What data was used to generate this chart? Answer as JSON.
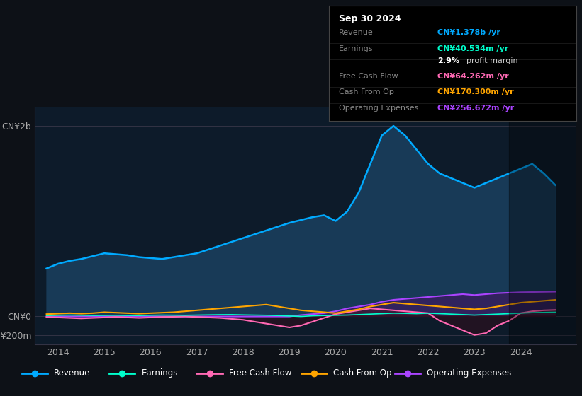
{
  "bg_color": "#0d1117",
  "plot_bg_color": "#0d1b2a",
  "ylabel_top": "CN¥2b",
  "ytick_labels": [
    "CN¥2b",
    "CN¥0",
    "-CN¥200m"
  ],
  "ytick_values": [
    2000,
    0,
    -200
  ],
  "ylim": [
    -300,
    2200
  ],
  "xlim_start": 2013.5,
  "xlim_end": 2025.2,
  "xtick_years": [
    2014,
    2015,
    2016,
    2017,
    2018,
    2019,
    2020,
    2021,
    2022,
    2023,
    2024
  ],
  "legend_items": [
    {
      "label": "Revenue",
      "color": "#00aaff"
    },
    {
      "label": "Earnings",
      "color": "#00ffcc"
    },
    {
      "label": "Free Cash Flow",
      "color": "#ff69b4"
    },
    {
      "label": "Cash From Op",
      "color": "#ffa500"
    },
    {
      "label": "Operating Expenses",
      "color": "#aa44ff"
    }
  ],
  "info_box": {
    "title": "Sep 30 2024",
    "rows": [
      {
        "label": "Revenue",
        "value": "CN¥1.378b /yr",
        "value_color": "#00aaff"
      },
      {
        "label": "Earnings",
        "value": "CN¥40.534m /yr",
        "value_color": "#00ffcc"
      },
      {
        "label": "",
        "value": "2.9% profit margin",
        "value_color": "#ffffff"
      },
      {
        "label": "Free Cash Flow",
        "value": "CN¥64.262m /yr",
        "value_color": "#ff69b4"
      },
      {
        "label": "Cash From Op",
        "value": "CN¥170.300m /yr",
        "value_color": "#ffa500"
      },
      {
        "label": "Operating Expenses",
        "value": "CN¥256.672m /yr",
        "value_color": "#aa44ff"
      }
    ]
  },
  "revenue": {
    "years": [
      2013.75,
      2014.0,
      2014.25,
      2014.5,
      2014.75,
      2015.0,
      2015.25,
      2015.5,
      2015.75,
      2016.0,
      2016.25,
      2016.5,
      2016.75,
      2017.0,
      2017.25,
      2017.5,
      2017.75,
      2018.0,
      2018.25,
      2018.5,
      2018.75,
      2019.0,
      2019.25,
      2019.5,
      2019.75,
      2020.0,
      2020.25,
      2020.5,
      2020.75,
      2021.0,
      2021.25,
      2021.5,
      2021.75,
      2022.0,
      2022.25,
      2022.5,
      2022.75,
      2023.0,
      2023.25,
      2023.5,
      2023.75,
      2024.0,
      2024.25,
      2024.5,
      2024.75
    ],
    "values": [
      500,
      550,
      580,
      600,
      630,
      660,
      650,
      640,
      620,
      610,
      600,
      620,
      640,
      660,
      700,
      740,
      780,
      820,
      860,
      900,
      940,
      980,
      1010,
      1040,
      1060,
      1000,
      1100,
      1300,
      1600,
      1900,
      2000,
      1900,
      1750,
      1600,
      1500,
      1450,
      1400,
      1350,
      1400,
      1450,
      1500,
      1550,
      1600,
      1500,
      1378
    ],
    "color": "#00aaff",
    "fill_color": "#1a4060",
    "alpha": 0.85
  },
  "earnings": {
    "years": [
      2013.75,
      2014.0,
      2014.25,
      2014.5,
      2014.75,
      2015.0,
      2015.25,
      2015.5,
      2015.75,
      2016.0,
      2016.25,
      2016.5,
      2016.75,
      2017.0,
      2017.25,
      2017.5,
      2017.75,
      2018.0,
      2018.25,
      2018.5,
      2018.75,
      2019.0,
      2019.25,
      2019.5,
      2019.75,
      2020.0,
      2020.25,
      2020.5,
      2020.75,
      2021.0,
      2021.25,
      2021.5,
      2021.75,
      2022.0,
      2022.25,
      2022.5,
      2022.75,
      2023.0,
      2023.25,
      2023.5,
      2023.75,
      2024.0,
      2024.25,
      2024.5,
      2024.75
    ],
    "values": [
      5,
      8,
      10,
      8,
      6,
      7,
      8,
      6,
      5,
      8,
      10,
      9,
      8,
      10,
      12,
      14,
      15,
      12,
      10,
      8,
      5,
      0,
      -5,
      2,
      5,
      8,
      10,
      15,
      20,
      25,
      30,
      28,
      25,
      30,
      25,
      20,
      15,
      10,
      15,
      20,
      25,
      30,
      35,
      38,
      40
    ],
    "color": "#00ffcc"
  },
  "free_cash_flow": {
    "years": [
      2013.75,
      2014.0,
      2014.25,
      2014.5,
      2014.75,
      2015.0,
      2015.25,
      2015.5,
      2015.75,
      2016.0,
      2016.25,
      2016.5,
      2016.75,
      2017.0,
      2017.25,
      2017.5,
      2017.75,
      2018.0,
      2018.25,
      2018.5,
      2018.75,
      2019.0,
      2019.25,
      2019.5,
      2019.75,
      2020.0,
      2020.25,
      2020.5,
      2020.75,
      2021.0,
      2021.25,
      2021.5,
      2021.75,
      2022.0,
      2022.25,
      2022.5,
      2022.75,
      2023.0,
      2023.25,
      2023.5,
      2023.75,
      2024.0,
      2024.25,
      2024.5,
      2024.75
    ],
    "values": [
      -10,
      -15,
      -20,
      -25,
      -20,
      -15,
      -10,
      -15,
      -20,
      -15,
      -10,
      -8,
      -5,
      -10,
      -15,
      -20,
      -30,
      -40,
      -60,
      -80,
      -100,
      -120,
      -100,
      -60,
      -20,
      20,
      40,
      60,
      80,
      70,
      60,
      50,
      40,
      30,
      -50,
      -100,
      -150,
      -200,
      -180,
      -100,
      -50,
      30,
      50,
      60,
      64
    ],
    "color": "#ff69b4",
    "fill_color": "#3d1a2e",
    "alpha": 0.6
  },
  "cash_from_op": {
    "years": [
      2013.75,
      2014.0,
      2014.25,
      2014.5,
      2014.75,
      2015.0,
      2015.25,
      2015.5,
      2015.75,
      2016.0,
      2016.25,
      2016.5,
      2016.75,
      2017.0,
      2017.25,
      2017.5,
      2017.75,
      2018.0,
      2018.25,
      2018.5,
      2018.75,
      2019.0,
      2019.25,
      2019.5,
      2019.75,
      2020.0,
      2020.25,
      2020.5,
      2020.75,
      2021.0,
      2021.25,
      2021.5,
      2021.75,
      2022.0,
      2022.25,
      2022.5,
      2022.75,
      2023.0,
      2023.25,
      2023.5,
      2023.75,
      2024.0,
      2024.25,
      2024.5,
      2024.75
    ],
    "values": [
      20,
      25,
      30,
      25,
      30,
      40,
      35,
      30,
      25,
      30,
      35,
      40,
      50,
      60,
      70,
      80,
      90,
      100,
      110,
      120,
      100,
      80,
      60,
      50,
      40,
      30,
      50,
      70,
      100,
      120,
      140,
      130,
      120,
      110,
      100,
      90,
      80,
      70,
      80,
      100,
      120,
      140,
      150,
      160,
      170
    ],
    "color": "#ffa500"
  },
  "operating_expenses": {
    "years": [
      2013.75,
      2014.0,
      2014.25,
      2014.5,
      2014.75,
      2015.0,
      2015.25,
      2015.5,
      2015.75,
      2016.0,
      2016.25,
      2016.5,
      2016.75,
      2017.0,
      2017.25,
      2017.5,
      2017.75,
      2018.0,
      2018.25,
      2018.5,
      2018.75,
      2019.0,
      2019.25,
      2019.5,
      2019.75,
      2020.0,
      2020.25,
      2020.5,
      2020.75,
      2021.0,
      2021.25,
      2021.5,
      2021.75,
      2022.0,
      2022.25,
      2022.5,
      2022.75,
      2023.0,
      2023.25,
      2023.5,
      2023.75,
      2024.0,
      2024.25,
      2024.5,
      2024.75
    ],
    "values": [
      -5,
      -5,
      -5,
      -5,
      -5,
      -5,
      -5,
      -5,
      -5,
      -5,
      -5,
      -5,
      -5,
      -5,
      -5,
      -5,
      -5,
      -5,
      -5,
      -5,
      -5,
      -5,
      10,
      20,
      30,
      50,
      80,
      100,
      120,
      150,
      170,
      180,
      190,
      200,
      210,
      220,
      230,
      220,
      230,
      240,
      245,
      250,
      252,
      254,
      256
    ],
    "color": "#aa44ff",
    "fill_color": "#3d1a60",
    "alpha": 0.7
  }
}
